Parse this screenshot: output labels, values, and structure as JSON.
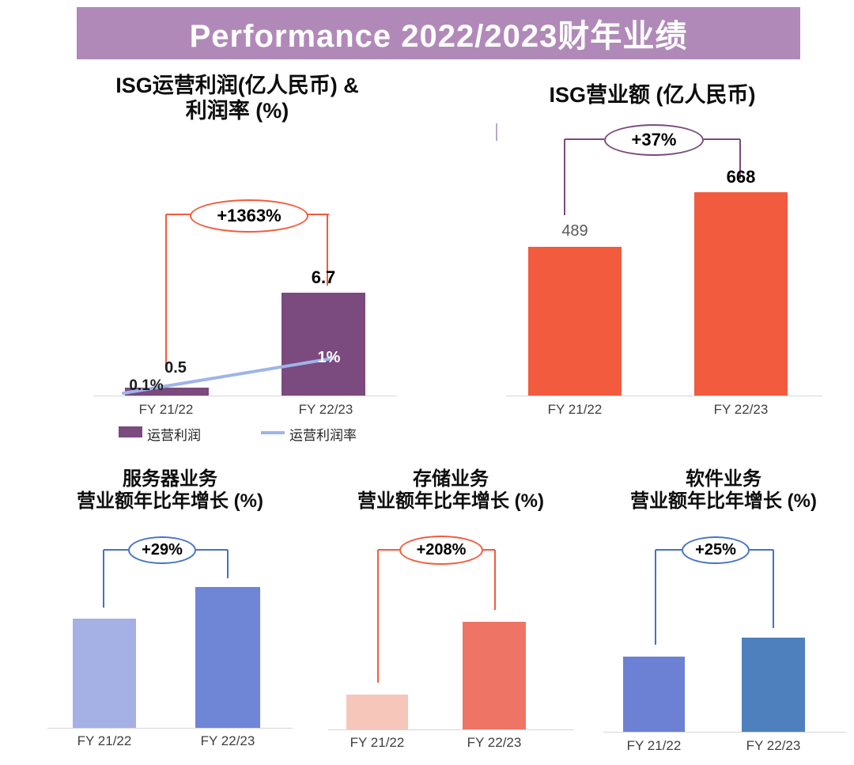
{
  "banner": {
    "title": "Performance 2022/2023财年业绩",
    "background_color": "#B189B9"
  },
  "chart_data": [
    {
      "id": "isg-operating-profit-and-margin",
      "type": "bar",
      "title_lines": [
        "ISG运营利润(亿人民币) &",
        "利润率 (%)"
      ],
      "categories": [
        "FY 21/22",
        "FY 22/23"
      ],
      "series": [
        {
          "name": "运营利润",
          "render": "bar",
          "values": [
            0.5,
            6.7
          ],
          "value_labels": [
            "0.5",
            "6.7"
          ],
          "color": "#7B4A7E"
        },
        {
          "name": "运营利润率",
          "render": "line",
          "values": [
            0.1,
            1.0
          ],
          "value_labels": [
            "0.1%",
            "1%"
          ],
          "color": "#9FB4E8"
        }
      ],
      "growth_annotation": "+1363%",
      "annotation_color": "#F25B3D",
      "legend": [
        {
          "label": "运营利润",
          "swatch": "bar",
          "color": "#7B4A7E"
        },
        {
          "label": "运营利润率",
          "swatch": "line",
          "color": "#9FB4E8"
        }
      ],
      "legend_position": "bottom",
      "grid": false
    },
    {
      "id": "isg-revenue",
      "type": "bar",
      "title_lines": [
        "ISG营业额 (亿人民币)"
      ],
      "categories": [
        "FY 21/22",
        "FY 22/23"
      ],
      "values": [
        489,
        668
      ],
      "value_labels": [
        "489",
        "668"
      ],
      "bar_colors": [
        "#F25B3D",
        "#F25B3D"
      ],
      "growth_annotation": "+37%",
      "annotation_color": "#7B4A7E",
      "grid": false
    },
    {
      "id": "server-revenue-yoy-growth",
      "type": "bar",
      "title_lines": [
        "服务器业务",
        "营业额年比年增长 (%)"
      ],
      "categories": [
        "FY 21/22",
        "FY 22/23"
      ],
      "values_indexed": [
        100,
        129
      ],
      "index_note": "FY 21/22 = 100, heights estimated from pixels",
      "bar_colors": [
        "#A5B0E4",
        "#6F85D6"
      ],
      "growth_annotation": "+29%",
      "annotation_color": "#4472C4",
      "grid": false
    },
    {
      "id": "storage-revenue-yoy-growth",
      "type": "bar",
      "title_lines": [
        "存储业务",
        "营业额年比年增长 (%)"
      ],
      "categories": [
        "FY 21/22",
        "FY 22/23"
      ],
      "values_indexed": [
        100,
        308
      ],
      "index_note": "FY 21/22 = 100, heights estimated from pixels",
      "bar_colors": [
        "#F6C6BB",
        "#EE7565"
      ],
      "growth_annotation": "+208%",
      "annotation_color": "#F25B3D",
      "grid": false
    },
    {
      "id": "software-revenue-yoy-growth",
      "type": "bar",
      "title_lines": [
        "软件业务",
        "营业额年比年增长 (%)"
      ],
      "categories": [
        "FY 21/22",
        "FY 22/23"
      ],
      "values_indexed": [
        100,
        125
      ],
      "index_note": "FY 21/22 = 100, heights estimated from pixels",
      "bar_colors": [
        "#6C80D4",
        "#4E80BD"
      ],
      "growth_annotation": "+25%",
      "annotation_color": "#4472C4",
      "grid": false
    }
  ]
}
